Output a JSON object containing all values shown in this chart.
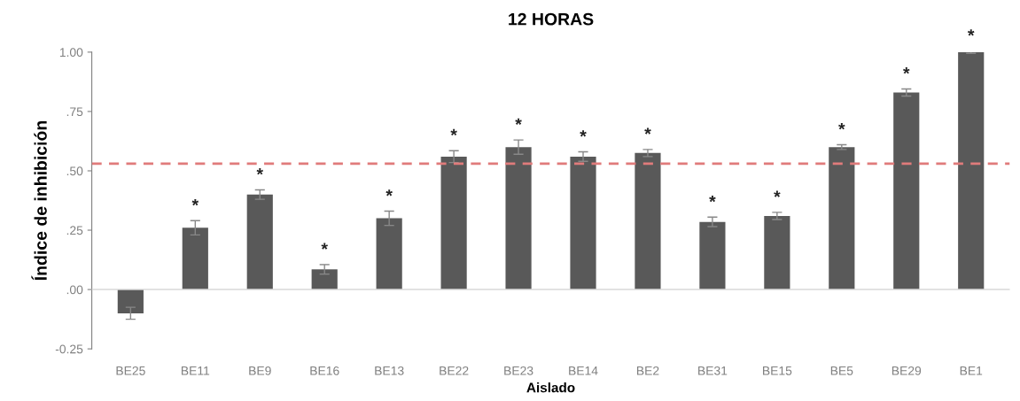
{
  "chart_data": {
    "type": "bar",
    "title": "12 HORAS",
    "xlabel": "Aislado",
    "ylabel": "Índice de inhibición",
    "categories": [
      "BE25",
      "BE11",
      "BE9",
      "BE16",
      "BE13",
      "BE22",
      "BE23",
      "BE14",
      "BE2",
      "BE31",
      "BE15",
      "BE5",
      "BE29",
      "BE1"
    ],
    "series": [
      {
        "color": "#595959",
        "values": [
          -0.1,
          0.26,
          0.4,
          0.085,
          0.3,
          0.56,
          0.6,
          0.56,
          0.575,
          0.285,
          0.31,
          0.6,
          0.83,
          1.0
        ],
        "errors": [
          0.025,
          0.03,
          0.02,
          0.02,
          0.03,
          0.025,
          0.03,
          0.02,
          0.015,
          0.02,
          0.015,
          0.01,
          0.015,
          0.005
        ],
        "value_labels": [
          null,
          "*",
          "*",
          "*",
          "*",
          "*",
          "*",
          "*",
          "*",
          "*",
          "*",
          "*",
          "*",
          "*"
        ]
      }
    ],
    "ylim": [
      -0.25,
      1.0
    ],
    "yticks": [
      {
        "value": -0.25,
        "label": "-0.25"
      },
      {
        "value": 0,
        "label": ".00"
      },
      {
        "value": 0.25,
        "label": ".25"
      },
      {
        "value": 0.5,
        "label": ".50"
      },
      {
        "value": 0.75,
        "label": ".75"
      },
      {
        "value": 1.0,
        "label": "1.00"
      }
    ],
    "ref_lines": [
      {
        "axis": "y",
        "value": 0,
        "color": "#d9d9d9",
        "line_style": "solid"
      },
      {
        "axis": "y",
        "value": 0.53,
        "color": "#e07b7b",
        "line_style": "dashed"
      }
    ],
    "grid": false,
    "legend": false
  }
}
